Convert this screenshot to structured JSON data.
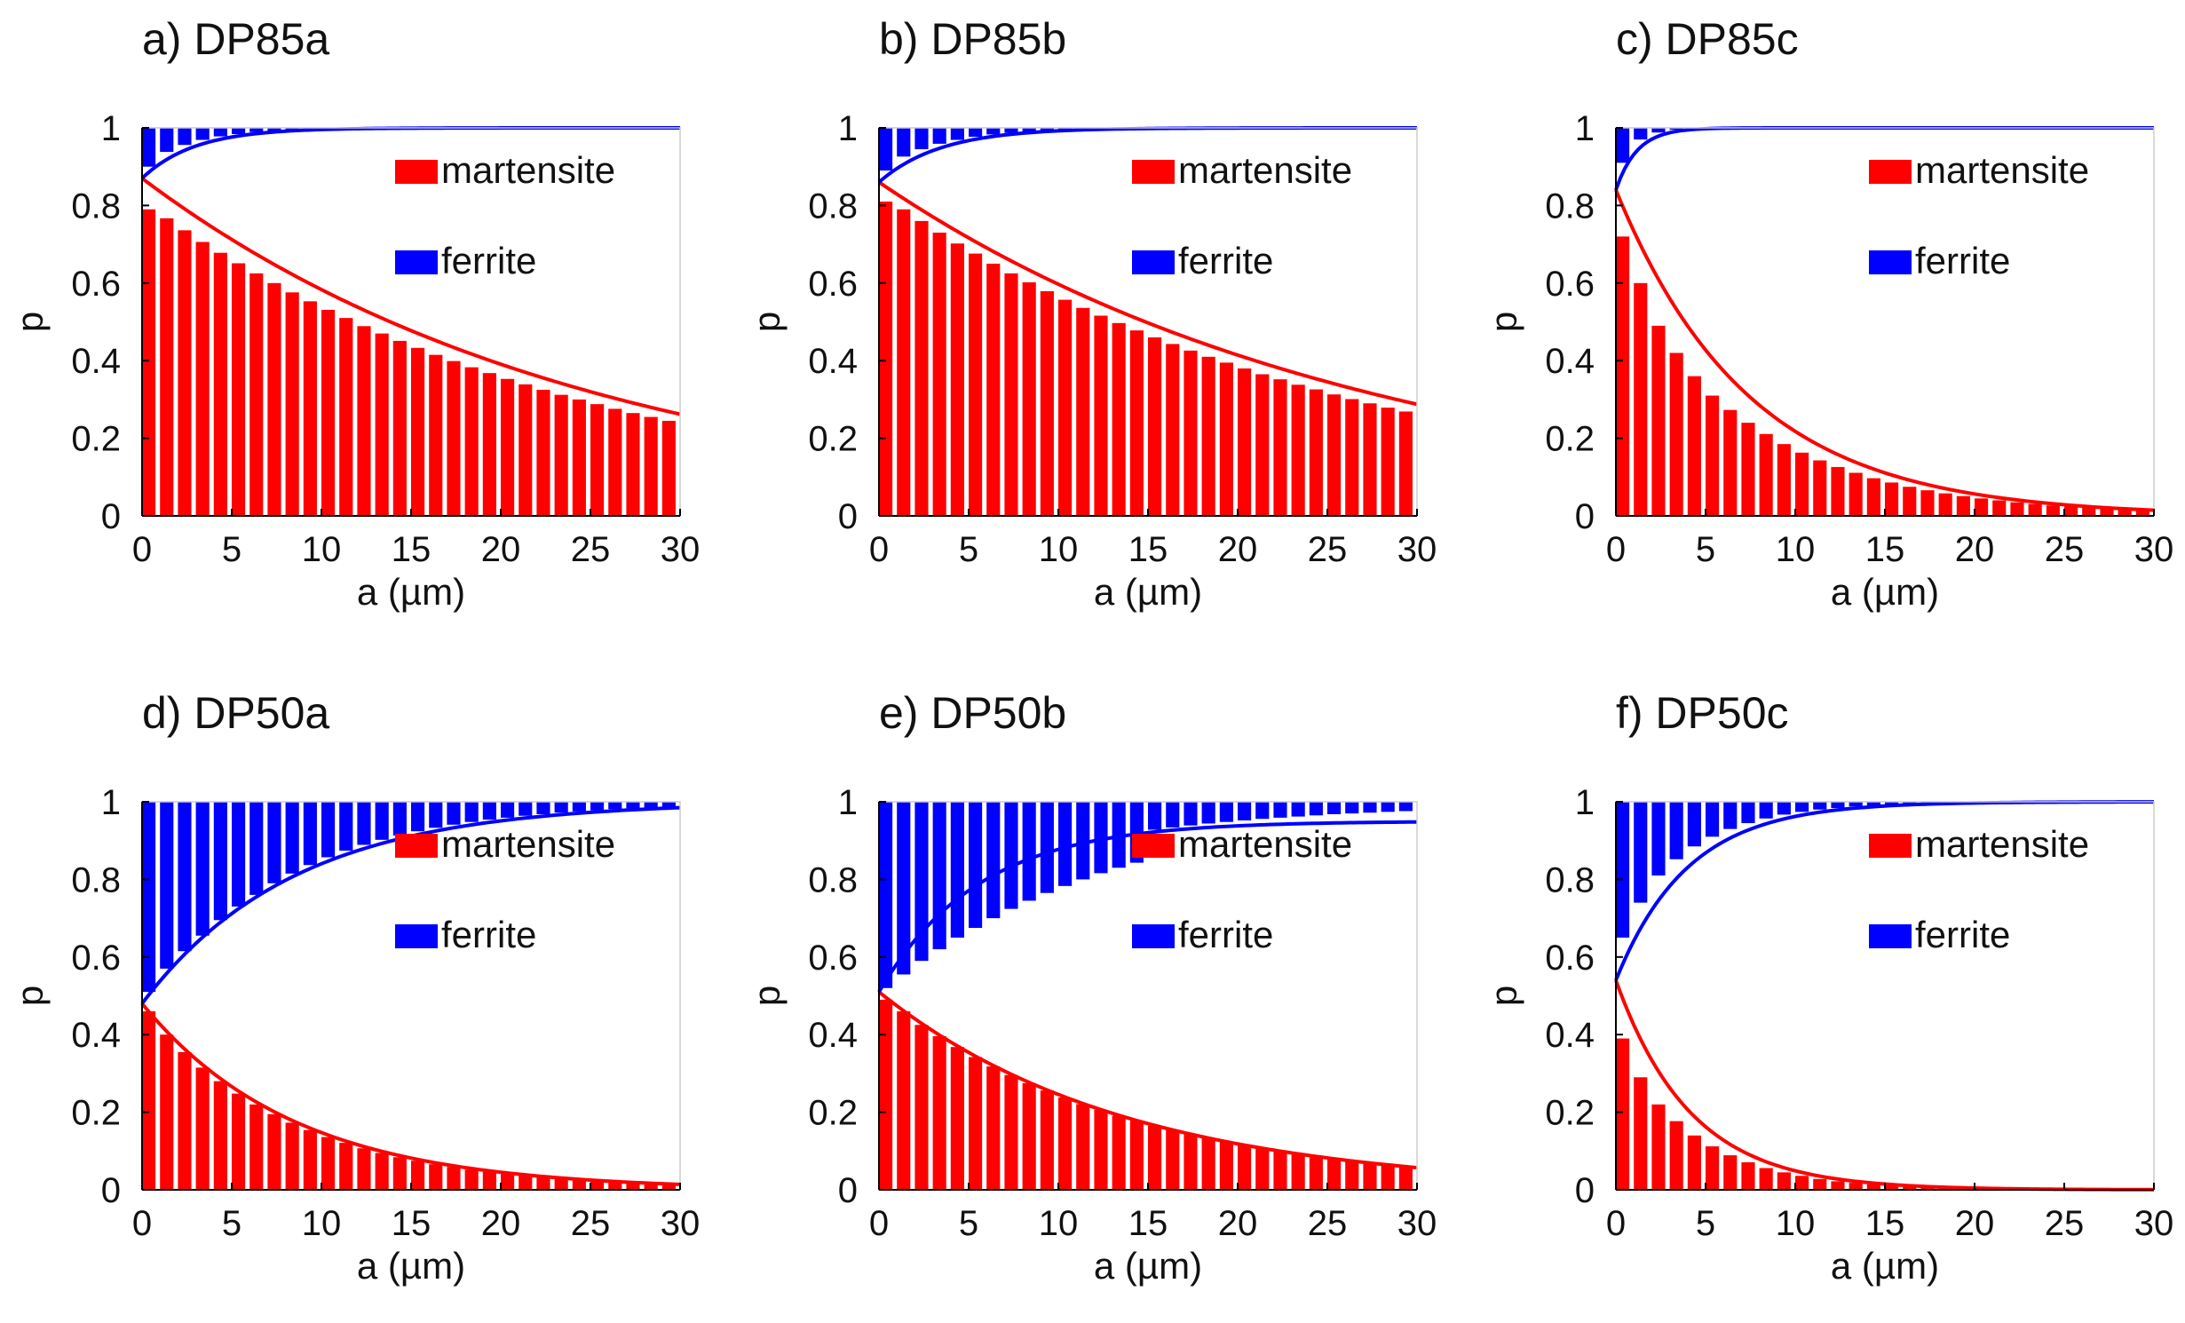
{
  "figure": {
    "colors": {
      "martensite": "#ff0000",
      "ferrite": "#0000ff",
      "axis": "#000000"
    }
  },
  "chart_data": [
    {
      "type": "bar",
      "title": "a) DP85a",
      "xlabel": "a (µm)",
      "ylabel": "p",
      "xlim": [
        0,
        30
      ],
      "ylim": [
        0,
        1
      ],
      "xticks": [
        "0",
        "5",
        "10",
        "15",
        "20",
        "25",
        "30"
      ],
      "yticks": [
        "0",
        "0.2",
        "0.4",
        "0.6",
        "0.8",
        "1"
      ],
      "legend": [
        "martensite",
        "ferrite"
      ],
      "bar_width": 0.75,
      "x": [
        0,
        1,
        2,
        3,
        4,
        5,
        6,
        7,
        8,
        9,
        10,
        11,
        12,
        13,
        14,
        15,
        16,
        17,
        18,
        19,
        20,
        21,
        22,
        23,
        24,
        25,
        26,
        27,
        28,
        29
      ],
      "series": [
        {
          "name": "martensite",
          "values": [
            0.79,
            0.767,
            0.736,
            0.706,
            0.678,
            0.651,
            0.625,
            0.6,
            0.576,
            0.553,
            0.531,
            0.51,
            0.489,
            0.47,
            0.451,
            0.433,
            0.415,
            0.399,
            0.383,
            0.368,
            0.353,
            0.339,
            0.325,
            0.312,
            0.3,
            0.288,
            0.276,
            0.265,
            0.255,
            0.245
          ]
        },
        {
          "name": "ferrite",
          "values": [
            0.1,
            0.062,
            0.044,
            0.031,
            0.022,
            0.016,
            0.011,
            0.008,
            0.006,
            0.004,
            0.003,
            0.002,
            0.002,
            0.001,
            0.001,
            0.001,
            0.0,
            0.0,
            0.0,
            0.0,
            0.0,
            0.0,
            0.0,
            0.0,
            0.0,
            0.0,
            0.0,
            0.0,
            0.0,
            0.0
          ]
        }
      ],
      "curves": [
        {
          "name": "martensite",
          "start": 0.87,
          "end": 0.0,
          "rate": 0.04
        },
        {
          "name": "ferrite",
          "start": 0.87,
          "end": 1.0,
          "rate": 0.34
        }
      ]
    },
    {
      "type": "bar",
      "title": "b) DP85b",
      "xlabel": "a (µm)",
      "ylabel": "p",
      "xlim": [
        0,
        30
      ],
      "ylim": [
        0,
        1
      ],
      "xticks": [
        "0",
        "5",
        "10",
        "15",
        "20",
        "25",
        "30"
      ],
      "yticks": [
        "0",
        "0.2",
        "0.4",
        "0.6",
        "0.8",
        "1"
      ],
      "legend": [
        "martensite",
        "ferrite"
      ],
      "bar_width": 0.75,
      "x": [
        0,
        1,
        2,
        3,
        4,
        5,
        6,
        7,
        8,
        9,
        10,
        11,
        12,
        13,
        14,
        15,
        16,
        17,
        18,
        19,
        20,
        21,
        22,
        23,
        24,
        25,
        26,
        27,
        28,
        29
      ],
      "series": [
        {
          "name": "martensite",
          "values": [
            0.81,
            0.79,
            0.76,
            0.73,
            0.702,
            0.676,
            0.65,
            0.625,
            0.602,
            0.579,
            0.557,
            0.536,
            0.516,
            0.497,
            0.478,
            0.46,
            0.443,
            0.426,
            0.41,
            0.395,
            0.38,
            0.365,
            0.352,
            0.338,
            0.326,
            0.313,
            0.301,
            0.29,
            0.279,
            0.269
          ]
        },
        {
          "name": "ferrite",
          "values": [
            0.11,
            0.074,
            0.055,
            0.041,
            0.031,
            0.023,
            0.017,
            0.013,
            0.01,
            0.007,
            0.005,
            0.004,
            0.003,
            0.002,
            0.002,
            0.001,
            0.001,
            0.001,
            0.0,
            0.0,
            0.0,
            0.0,
            0.0,
            0.0,
            0.0,
            0.0,
            0.0,
            0.0,
            0.0,
            0.0
          ]
        }
      ],
      "curves": [
        {
          "name": "martensite",
          "start": 0.86,
          "end": 0.0,
          "rate": 0.0365
        },
        {
          "name": "ferrite",
          "start": 0.86,
          "end": 1.0,
          "rate": 0.29
        }
      ]
    },
    {
      "type": "bar",
      "title": "c) DP85c",
      "xlabel": "a (µm)",
      "ylabel": "p",
      "xlim": [
        0,
        30
      ],
      "ylim": [
        0,
        1
      ],
      "xticks": [
        "0",
        "5",
        "10",
        "15",
        "20",
        "25",
        "30"
      ],
      "yticks": [
        "0",
        "0.2",
        "0.4",
        "0.6",
        "0.8",
        "1"
      ],
      "legend": [
        "martensite",
        "ferrite"
      ],
      "bar_width": 0.75,
      "x": [
        0,
        1,
        2,
        3,
        4,
        5,
        6,
        7,
        8,
        9,
        10,
        11,
        12,
        13,
        14,
        15,
        16,
        17,
        18,
        19,
        20,
        21,
        22,
        23,
        24,
        25,
        26,
        27,
        28,
        29
      ],
      "series": [
        {
          "name": "martensite",
          "values": [
            0.72,
            0.6,
            0.49,
            0.42,
            0.36,
            0.31,
            0.273,
            0.24,
            0.211,
            0.185,
            0.163,
            0.143,
            0.126,
            0.111,
            0.097,
            0.086,
            0.075,
            0.066,
            0.058,
            0.051,
            0.045,
            0.04,
            0.035,
            0.031,
            0.027,
            0.024,
            0.021,
            0.018,
            0.016,
            0.014
          ]
        },
        {
          "name": "ferrite",
          "values": [
            0.09,
            0.03,
            0.012,
            0.005,
            0.002,
            0.001,
            0.0,
            0.0,
            0.0,
            0.0,
            0.0,
            0.0,
            0.0,
            0.0,
            0.0,
            0.0,
            0.0,
            0.0,
            0.0,
            0.0,
            0.0,
            0.0,
            0.0,
            0.0,
            0.0,
            0.0,
            0.0,
            0.0,
            0.0,
            0.0
          ]
        }
      ],
      "curves": [
        {
          "name": "martensite",
          "start": 0.84,
          "end": 0.0,
          "rate": 0.135
        },
        {
          "name": "ferrite",
          "start": 0.84,
          "end": 1.0,
          "rate": 0.85
        }
      ]
    },
    {
      "type": "bar",
      "title": "d) DP50a",
      "xlabel": "a (µm)",
      "ylabel": "p",
      "xlim": [
        0,
        30
      ],
      "ylim": [
        0,
        1
      ],
      "xticks": [
        "0",
        "5",
        "10",
        "15",
        "20",
        "25",
        "30"
      ],
      "yticks": [
        "0",
        "0.2",
        "0.4",
        "0.6",
        "0.8",
        "1"
      ],
      "legend": [
        "martensite",
        "ferrite"
      ],
      "bar_width": 0.75,
      "x": [
        0,
        1,
        2,
        3,
        4,
        5,
        6,
        7,
        8,
        9,
        10,
        11,
        12,
        13,
        14,
        15,
        16,
        17,
        18,
        19,
        20,
        21,
        22,
        23,
        24,
        25,
        26,
        27,
        28,
        29
      ],
      "series": [
        {
          "name": "martensite",
          "values": [
            0.46,
            0.4,
            0.355,
            0.315,
            0.28,
            0.248,
            0.22,
            0.195,
            0.173,
            0.154,
            0.136,
            0.121,
            0.107,
            0.095,
            0.084,
            0.075,
            0.066,
            0.059,
            0.052,
            0.046,
            0.041,
            0.036,
            0.032,
            0.029,
            0.025,
            0.022,
            0.02,
            0.018,
            0.016,
            0.014
          ]
        },
        {
          "name": "ferrite",
          "values": [
            0.49,
            0.43,
            0.385,
            0.345,
            0.305,
            0.27,
            0.24,
            0.21,
            0.185,
            0.163,
            0.143,
            0.126,
            0.111,
            0.098,
            0.087,
            0.076,
            0.067,
            0.059,
            0.052,
            0.046,
            0.041,
            0.036,
            0.032,
            0.028,
            0.025,
            0.022,
            0.019,
            0.017,
            0.015,
            0.013
          ]
        }
      ],
      "curves": [
        {
          "name": "martensite",
          "start": 0.48,
          "end": 0.0,
          "rate": 0.118
        },
        {
          "name": "ferrite",
          "start": 0.48,
          "end": 1.0,
          "rate": 0.118
        }
      ]
    },
    {
      "type": "bar",
      "title": "e) DP50b",
      "xlabel": "a (µm)",
      "ylabel": "p",
      "xlim": [
        0,
        30
      ],
      "ylim": [
        0,
        1
      ],
      "xticks": [
        "0",
        "5",
        "10",
        "15",
        "20",
        "25",
        "30"
      ],
      "yticks": [
        "0",
        "0.2",
        "0.4",
        "0.6",
        "0.8",
        "1"
      ],
      "legend": [
        "martensite",
        "ferrite"
      ],
      "bar_width": 0.75,
      "x": [
        0,
        1,
        2,
        3,
        4,
        5,
        6,
        7,
        8,
        9,
        10,
        11,
        12,
        13,
        14,
        15,
        16,
        17,
        18,
        19,
        20,
        21,
        22,
        23,
        24,
        25,
        26,
        27,
        28,
        29
      ],
      "series": [
        {
          "name": "martensite",
          "values": [
            0.49,
            0.46,
            0.425,
            0.396,
            0.368,
            0.342,
            0.318,
            0.296,
            0.275,
            0.256,
            0.238,
            0.221,
            0.206,
            0.191,
            0.178,
            0.165,
            0.154,
            0.143,
            0.133,
            0.124,
            0.115,
            0.107,
            0.099,
            0.092,
            0.086,
            0.08,
            0.074,
            0.069,
            0.064,
            0.059
          ]
        },
        {
          "name": "ferrite",
          "values": [
            0.48,
            0.445,
            0.41,
            0.38,
            0.35,
            0.325,
            0.3,
            0.276,
            0.255,
            0.235,
            0.217,
            0.2,
            0.184,
            0.17,
            0.157,
            0.072,
            0.066,
            0.061,
            0.056,
            0.052,
            0.048,
            0.044,
            0.041,
            0.038,
            0.035,
            0.032,
            0.03,
            0.028,
            0.026,
            0.024
          ]
        }
      ],
      "curves": [
        {
          "name": "martensite",
          "start": 0.51,
          "end": 0.0,
          "rate": 0.073
        },
        {
          "name": "ferrite",
          "start": 0.51,
          "end": 0.95,
          "rate": 0.18
        }
      ]
    },
    {
      "type": "bar",
      "title": "f) DP50c",
      "xlabel": "a (µm)",
      "ylabel": "p",
      "xlim": [
        0,
        30
      ],
      "ylim": [
        0,
        1
      ],
      "xticks": [
        "0",
        "5",
        "10",
        "15",
        "20",
        "25",
        "30"
      ],
      "yticks": [
        "0",
        "0.2",
        "0.4",
        "0.6",
        "0.8",
        "1"
      ],
      "legend": [
        "martensite",
        "ferrite"
      ],
      "bar_width": 0.75,
      "x": [
        0,
        1,
        2,
        3,
        4,
        5,
        6,
        7,
        8,
        9,
        10,
        11,
        12,
        13,
        14,
        15,
        16,
        17,
        18,
        19,
        20,
        21,
        22,
        23,
        24,
        25,
        26,
        27,
        28,
        29
      ],
      "series": [
        {
          "name": "martensite",
          "values": [
            0.39,
            0.29,
            0.22,
            0.177,
            0.14,
            0.112,
            0.089,
            0.071,
            0.056,
            0.045,
            0.036,
            0.028,
            0.022,
            0.018,
            0.014,
            0.011,
            0.009,
            0.007,
            0.006,
            0.005,
            0.004,
            0.003,
            0.002,
            0.002,
            0.002,
            0.001,
            0.001,
            0.001,
            0.001,
            0.0
          ]
        },
        {
          "name": "ferrite",
          "values": [
            0.35,
            0.26,
            0.19,
            0.148,
            0.115,
            0.09,
            0.07,
            0.055,
            0.043,
            0.033,
            0.026,
            0.02,
            0.016,
            0.012,
            0.01,
            0.008,
            0.006,
            0.005,
            0.004,
            0.003,
            0.002,
            0.002,
            0.001,
            0.001,
            0.001,
            0.001,
            0.0,
            0.0,
            0.0,
            0.0
          ]
        }
      ],
      "curves": [
        {
          "name": "martensite",
          "start": 0.54,
          "end": 0.0,
          "rate": 0.24
        },
        {
          "name": "ferrite",
          "start": 0.54,
          "end": 1.0,
          "rate": 0.25
        }
      ]
    }
  ]
}
